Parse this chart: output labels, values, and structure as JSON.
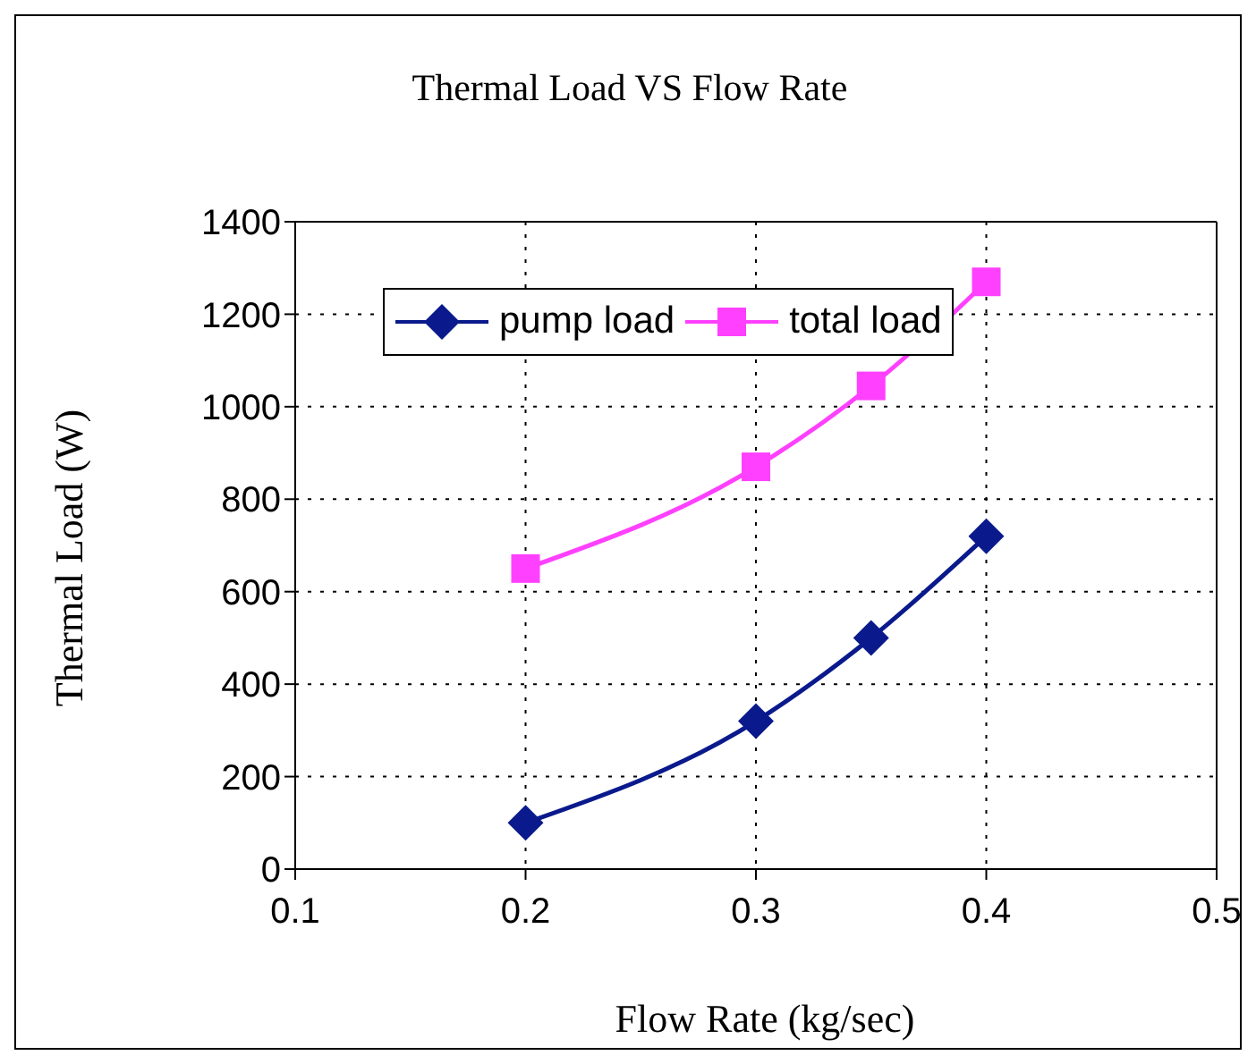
{
  "chart_data": {
    "type": "line",
    "title": "Thermal Load VS Flow Rate",
    "xlabel": "Flow Rate (kg/sec)",
    "ylabel": "Thermal Load (W)",
    "x": [
      0.2,
      0.3,
      0.35,
      0.4
    ],
    "series": [
      {
        "name": "pump load",
        "color": "#0a1a8c",
        "values": [
          100,
          320,
          500,
          720
        ],
        "marker": "diamond"
      },
      {
        "name": "total load",
        "color": "#ff40ff",
        "values": [
          650,
          870,
          1045,
          1270
        ],
        "marker": "square"
      }
    ],
    "xlim": [
      0.1,
      0.5
    ],
    "xticks": [
      0.1,
      0.2,
      0.3,
      0.4,
      0.5
    ],
    "ylim": [
      0,
      1400
    ],
    "yticks": [
      0,
      200,
      400,
      600,
      800,
      1000,
      1200,
      1400
    ],
    "grid": true,
    "legend": "top",
    "line_style": "solid"
  }
}
